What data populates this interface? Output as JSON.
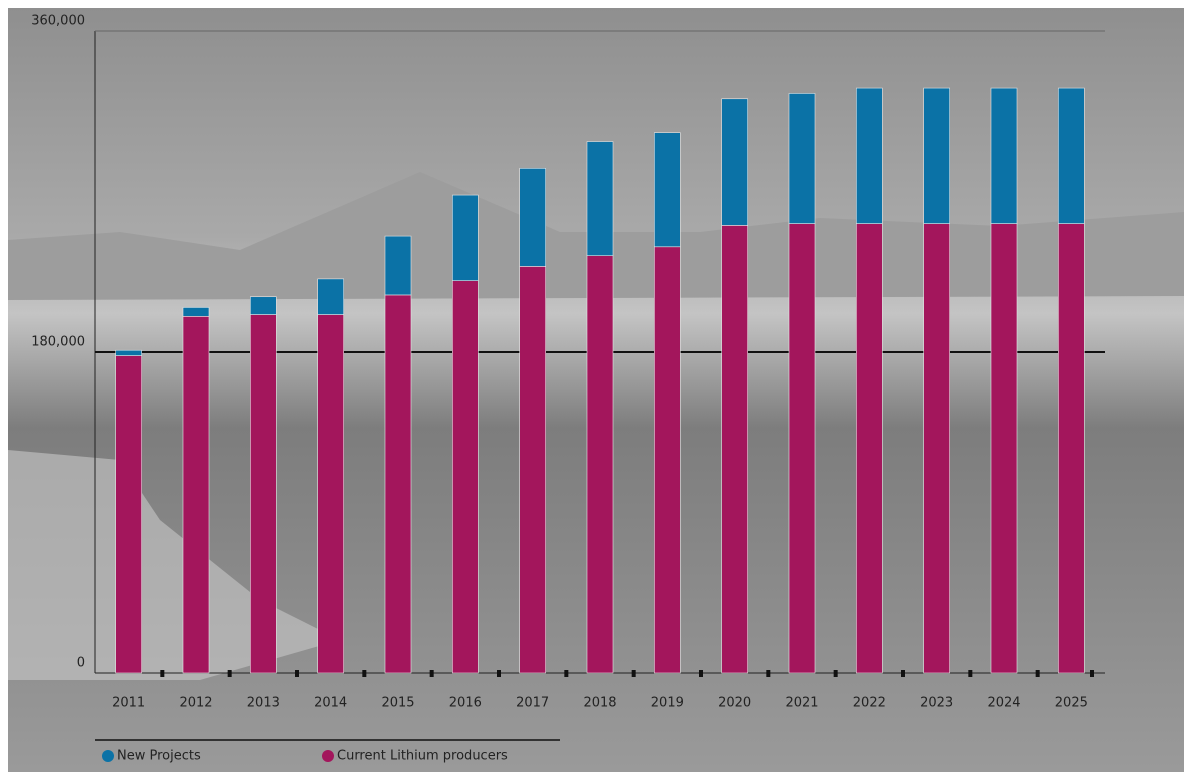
{
  "chart_data": {
    "type": "bar",
    "stacked": true,
    "categories": [
      "2011",
      "2012",
      "2013",
      "2014",
      "2015",
      "2016",
      "2017",
      "2018",
      "2019",
      "2020",
      "2021",
      "2022",
      "2023",
      "2024",
      "2025"
    ],
    "series": [
      {
        "name": "New Projects",
        "color": "#0b72a6",
        "values": [
          3000,
          5000,
          10000,
          20000,
          33000,
          48000,
          55000,
          64000,
          64000,
          71000,
          73000,
          76000,
          76000,
          76000,
          76000
        ]
      },
      {
        "name": "Current Lithium producers",
        "color": "#a3165c",
        "values": [
          178000,
          200000,
          201000,
          201000,
          212000,
          220000,
          228000,
          234000,
          239000,
          251000,
          252000,
          252000,
          252000,
          252000,
          252000
        ]
      }
    ],
    "ylim": [
      0,
      360000
    ],
    "yticks": [
      0,
      {
        "value": 180000,
        "label": "180,000"
      },
      {
        "value": 360000,
        "label": "360,000"
      }
    ],
    "grid": true,
    "legend": "bottom-left"
  }
}
